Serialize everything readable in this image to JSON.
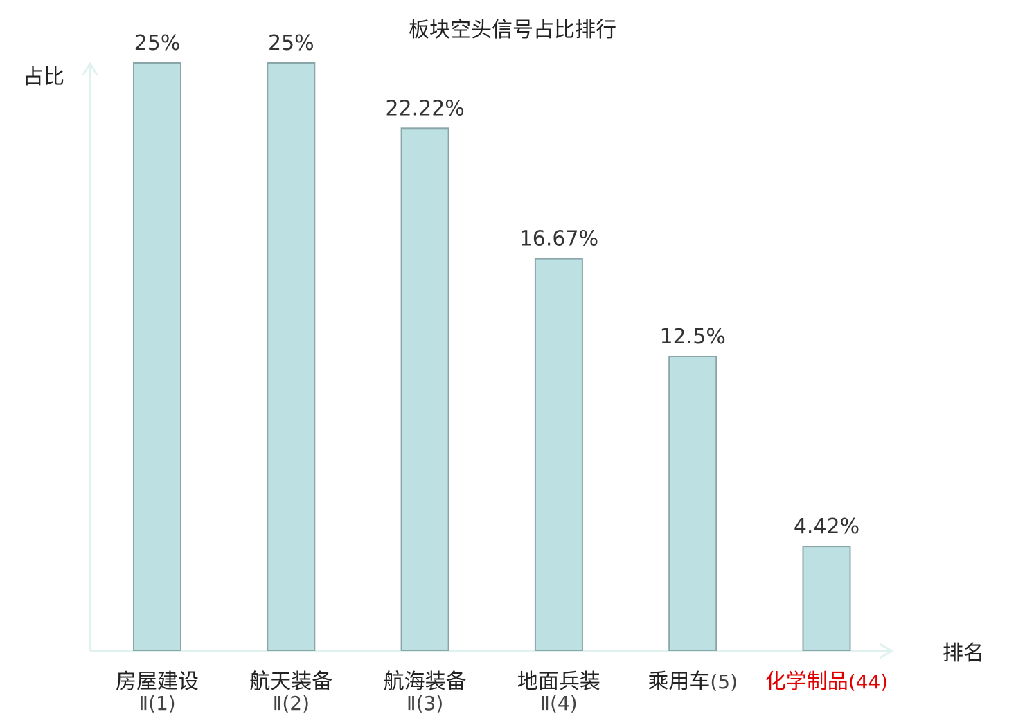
{
  "chart_data": {
    "type": "bar",
    "title": "板块空头信号占比排行",
    "ylabel": "占比",
    "xlabel": "排名",
    "ylim": [
      0,
      25
    ],
    "grid": false,
    "legend": "none",
    "categories": [
      {
        "name": "房屋建设",
        "rank": "Ⅱ(1)",
        "highlight": false
      },
      {
        "name": "航天装备",
        "rank": "Ⅱ(2)",
        "highlight": false
      },
      {
        "name": "航海装备",
        "rank": "Ⅱ(3)",
        "highlight": false
      },
      {
        "name": "地面兵装",
        "rank": "Ⅱ(4)",
        "highlight": false
      },
      {
        "name": "乘用车",
        "rank": "(5)",
        "highlight": false
      },
      {
        "name": "化学制品",
        "rank": "(44)",
        "highlight": true
      }
    ],
    "values": [
      25,
      25,
      22.22,
      16.67,
      12.5,
      4.42
    ],
    "value_labels": [
      "25%",
      "25%",
      "22.22%",
      "16.67%",
      "12.5%",
      "4.42%"
    ]
  },
  "colors": {
    "bar_fill": "#bde0e3",
    "bar_stroke": "#8aa6a8",
    "axis": "#e0f2ef",
    "text": "#222222",
    "value_text": "#333333",
    "rank_text": "#444444",
    "highlight": "#e00000"
  }
}
